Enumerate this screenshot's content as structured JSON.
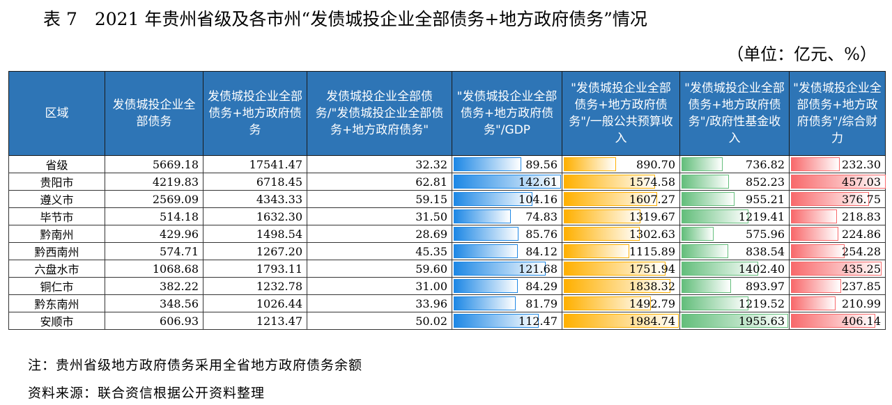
{
  "title": "表 7　2021 年贵州省级及各市州“发债城投企业全部债务+地方政府债务”情况",
  "unit": "（单位：亿元、%）",
  "columns": [
    "区域",
    "发债城投企业全部债务",
    "发债城投企业全部债务+地方政府债务",
    "发债城投企业全部债务/\"发债城投企业全部债务+地方政府债务\"",
    "\"发债城投企业全部债务+地方政府债务\"/GDP",
    "\"发债城投企业全部债务+地方政府债务\"/一般公共预算收入",
    "\"发债城投企业全部债务+地方政府债务\"/政府性基金收入",
    "\"发债城投企业全部债务+地方政府债务\"/综合财力"
  ],
  "bar_colors": [
    "#1e88e5",
    "#ffb000",
    "#63be7b",
    "#f8696b"
  ],
  "rows": [
    [
      "省级",
      "5669.18",
      "17541.47",
      "32.32",
      "89.56",
      "890.70",
      "736.82",
      "232.30"
    ],
    [
      "贵阳市",
      "4219.83",
      "6718.45",
      "62.81",
      "142.61",
      "1574.58",
      "852.23",
      "457.03"
    ],
    [
      "遵义市",
      "2569.09",
      "4343.33",
      "59.15",
      "104.16",
      "1607.27",
      "955.21",
      "376.75"
    ],
    [
      "毕节市",
      "514.18",
      "1632.30",
      "31.50",
      "74.83",
      "1319.67",
      "1219.41",
      "218.83"
    ],
    [
      "黔南州",
      "429.96",
      "1498.54",
      "28.69",
      "85.76",
      "1302.63",
      "575.96",
      "224.86"
    ],
    [
      "黔西南州",
      "574.71",
      "1267.20",
      "45.35",
      "84.12",
      "1115.89",
      "838.54",
      "254.28"
    ],
    [
      "六盘水市",
      "1068.68",
      "1793.11",
      "59.60",
      "121.68",
      "1751.94",
      "1402.40",
      "435.25"
    ],
    [
      "铜仁市",
      "382.22",
      "1232.78",
      "31.00",
      "84.29",
      "1838.32",
      "893.97",
      "237.85"
    ],
    [
      "黔东南州",
      "348.56",
      "1026.44",
      "33.96",
      "81.79",
      "1492.79",
      "1219.52",
      "210.99"
    ],
    [
      "安顺市",
      "606.93",
      "1213.47",
      "50.02",
      "112.47",
      "1984.74",
      "1955.63",
      "406.14"
    ]
  ],
  "notes": [
    "注：贵州省级地方政府债务采用全省地方政府债务余额",
    "资料来源：联合资信根据公开资料整理"
  ]
}
